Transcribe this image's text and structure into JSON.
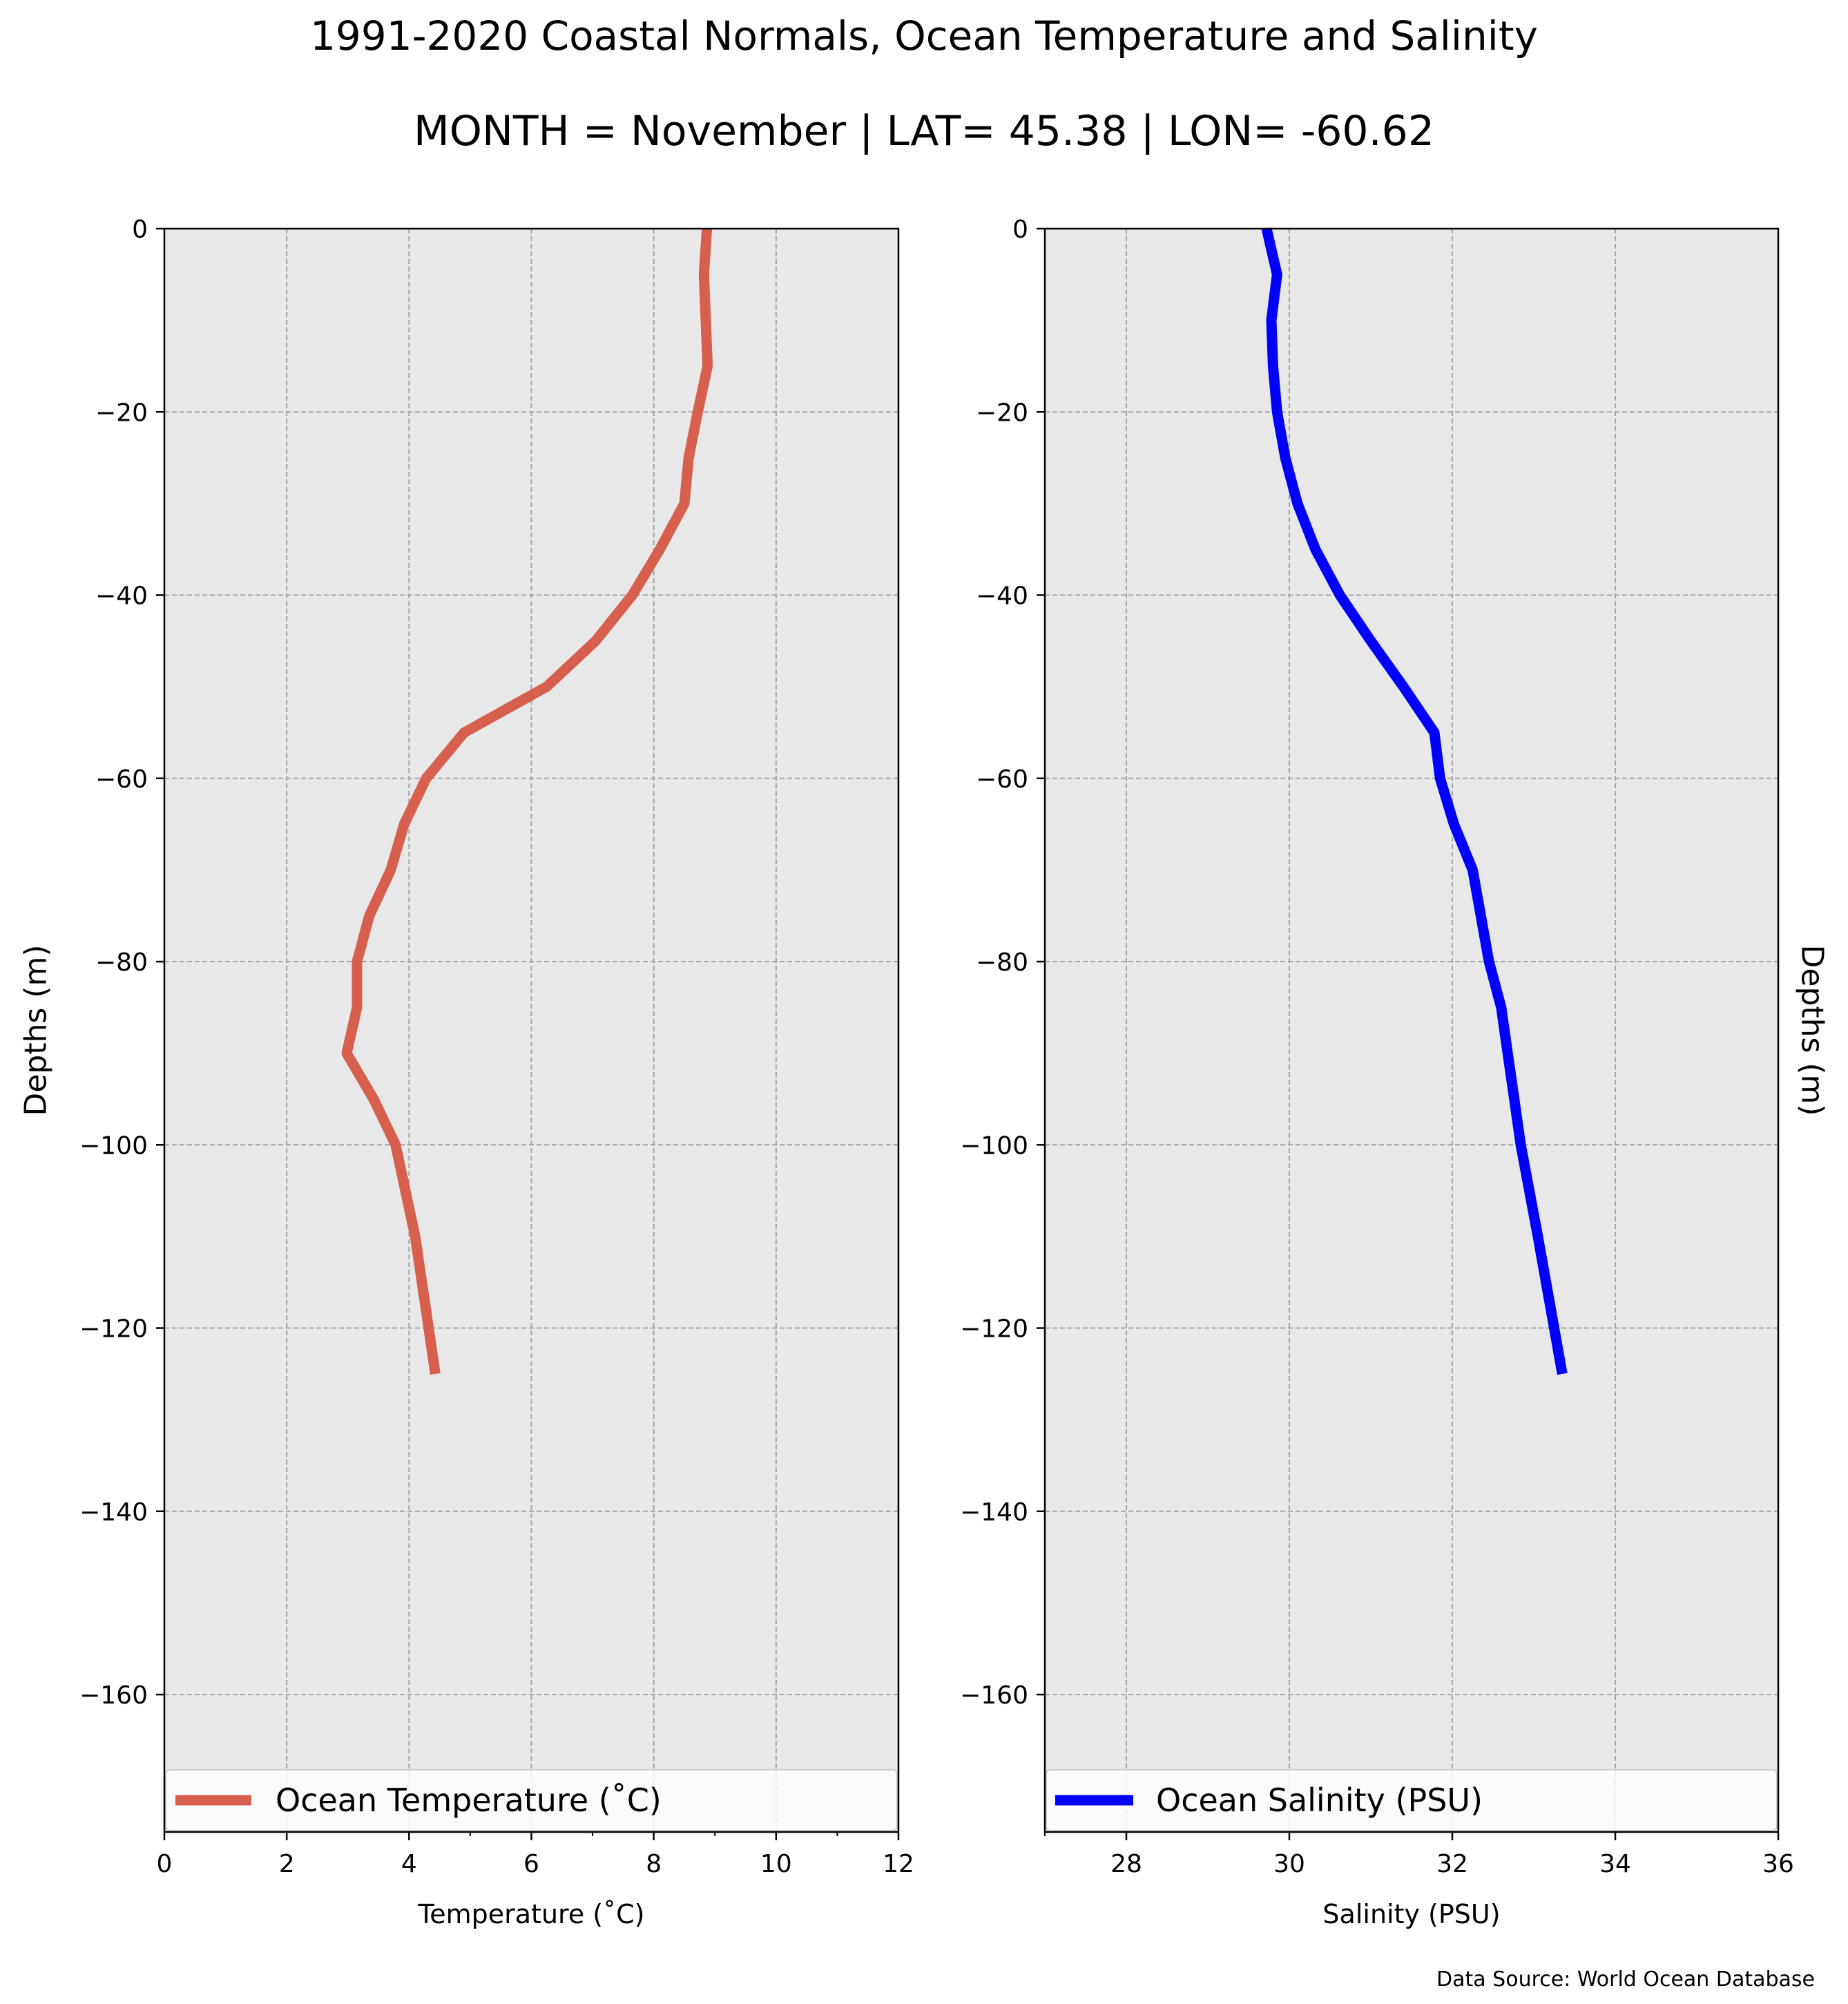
{
  "figure": {
    "title": "1991-2020 Coastal Normals, Ocean Temperature and Salinity",
    "subtitle": "MONTH = November | LAT= 45.38 | LON= -60.62",
    "source": "Data Source: World Ocean Database"
  },
  "chart_data": [
    {
      "type": "line",
      "xlabel": "Temperature (˚C)",
      "ylabel": "Depths (m)",
      "xlim": [
        0,
        12
      ],
      "ylim": [
        -175,
        0
      ],
      "xticks": [
        0,
        2,
        4,
        6,
        8,
        10,
        12
      ],
      "xtick_labels": [
        "0",
        "2",
        "4",
        "6",
        "8",
        "10",
        "12"
      ],
      "yticks": [
        0,
        -20,
        -40,
        -60,
        -80,
        -100,
        -120,
        -140,
        -160
      ],
      "ytick_labels": [
        "0",
        "−20",
        "−40",
        "−60",
        "−80",
        "−100",
        "−120",
        "−140",
        "−160"
      ],
      "grid": true,
      "legend_position": "bottom",
      "series": [
        {
          "name": "Ocean Temperature (˚C)",
          "color": "#d65f4e",
          "x": [
            8.87,
            8.82,
            8.85,
            8.88,
            8.72,
            8.57,
            8.5,
            8.1,
            7.65,
            7.05,
            6.25,
            4.9,
            4.28,
            3.92,
            3.7,
            3.35,
            3.15,
            3.15,
            2.98,
            3.42,
            3.78,
            4.1,
            4.43
          ],
          "y": [
            0,
            -5,
            -10,
            -15,
            -20,
            -25,
            -30,
            -35,
            -40,
            -45,
            -50,
            -55,
            -60,
            -65,
            -70,
            -75,
            -80,
            -85,
            -90,
            -95,
            -100,
            -110,
            -125
          ]
        }
      ]
    },
    {
      "type": "line",
      "xlabel": "Salinity (PSU)",
      "ylabel": "Depths (m)",
      "xlim": [
        27,
        36
      ],
      "ylim": [
        -175,
        0
      ],
      "xticks": [
        28,
        30,
        32,
        34,
        36
      ],
      "xtick_labels": [
        "28",
        "30",
        "32",
        "34",
        "36"
      ],
      "yticks": [
        0,
        -20,
        -40,
        -60,
        -80,
        -100,
        -120,
        -140,
        -160
      ],
      "ytick_labels": [
        "0",
        "−20",
        "−40",
        "−60",
        "−80",
        "−100",
        "−120",
        "−140",
        "−160"
      ],
      "grid": true,
      "legend_position": "bottom",
      "series": [
        {
          "name": "Ocean Salinity (PSU)",
          "color": "#0000ff",
          "x": [
            29.72,
            29.85,
            29.78,
            29.8,
            29.85,
            29.95,
            30.1,
            30.32,
            30.62,
            31.0,
            31.4,
            31.78,
            31.85,
            32.02,
            32.25,
            32.35,
            32.45,
            32.6,
            32.68,
            32.76,
            32.84,
            33.05,
            33.35
          ],
          "y": [
            0,
            -5,
            -10,
            -15,
            -20,
            -25,
            -30,
            -35,
            -40,
            -45,
            -50,
            -55,
            -60,
            -65,
            -70,
            -75,
            -80,
            -85,
            -90,
            -95,
            -100,
            -110,
            -125
          ]
        }
      ]
    }
  ]
}
